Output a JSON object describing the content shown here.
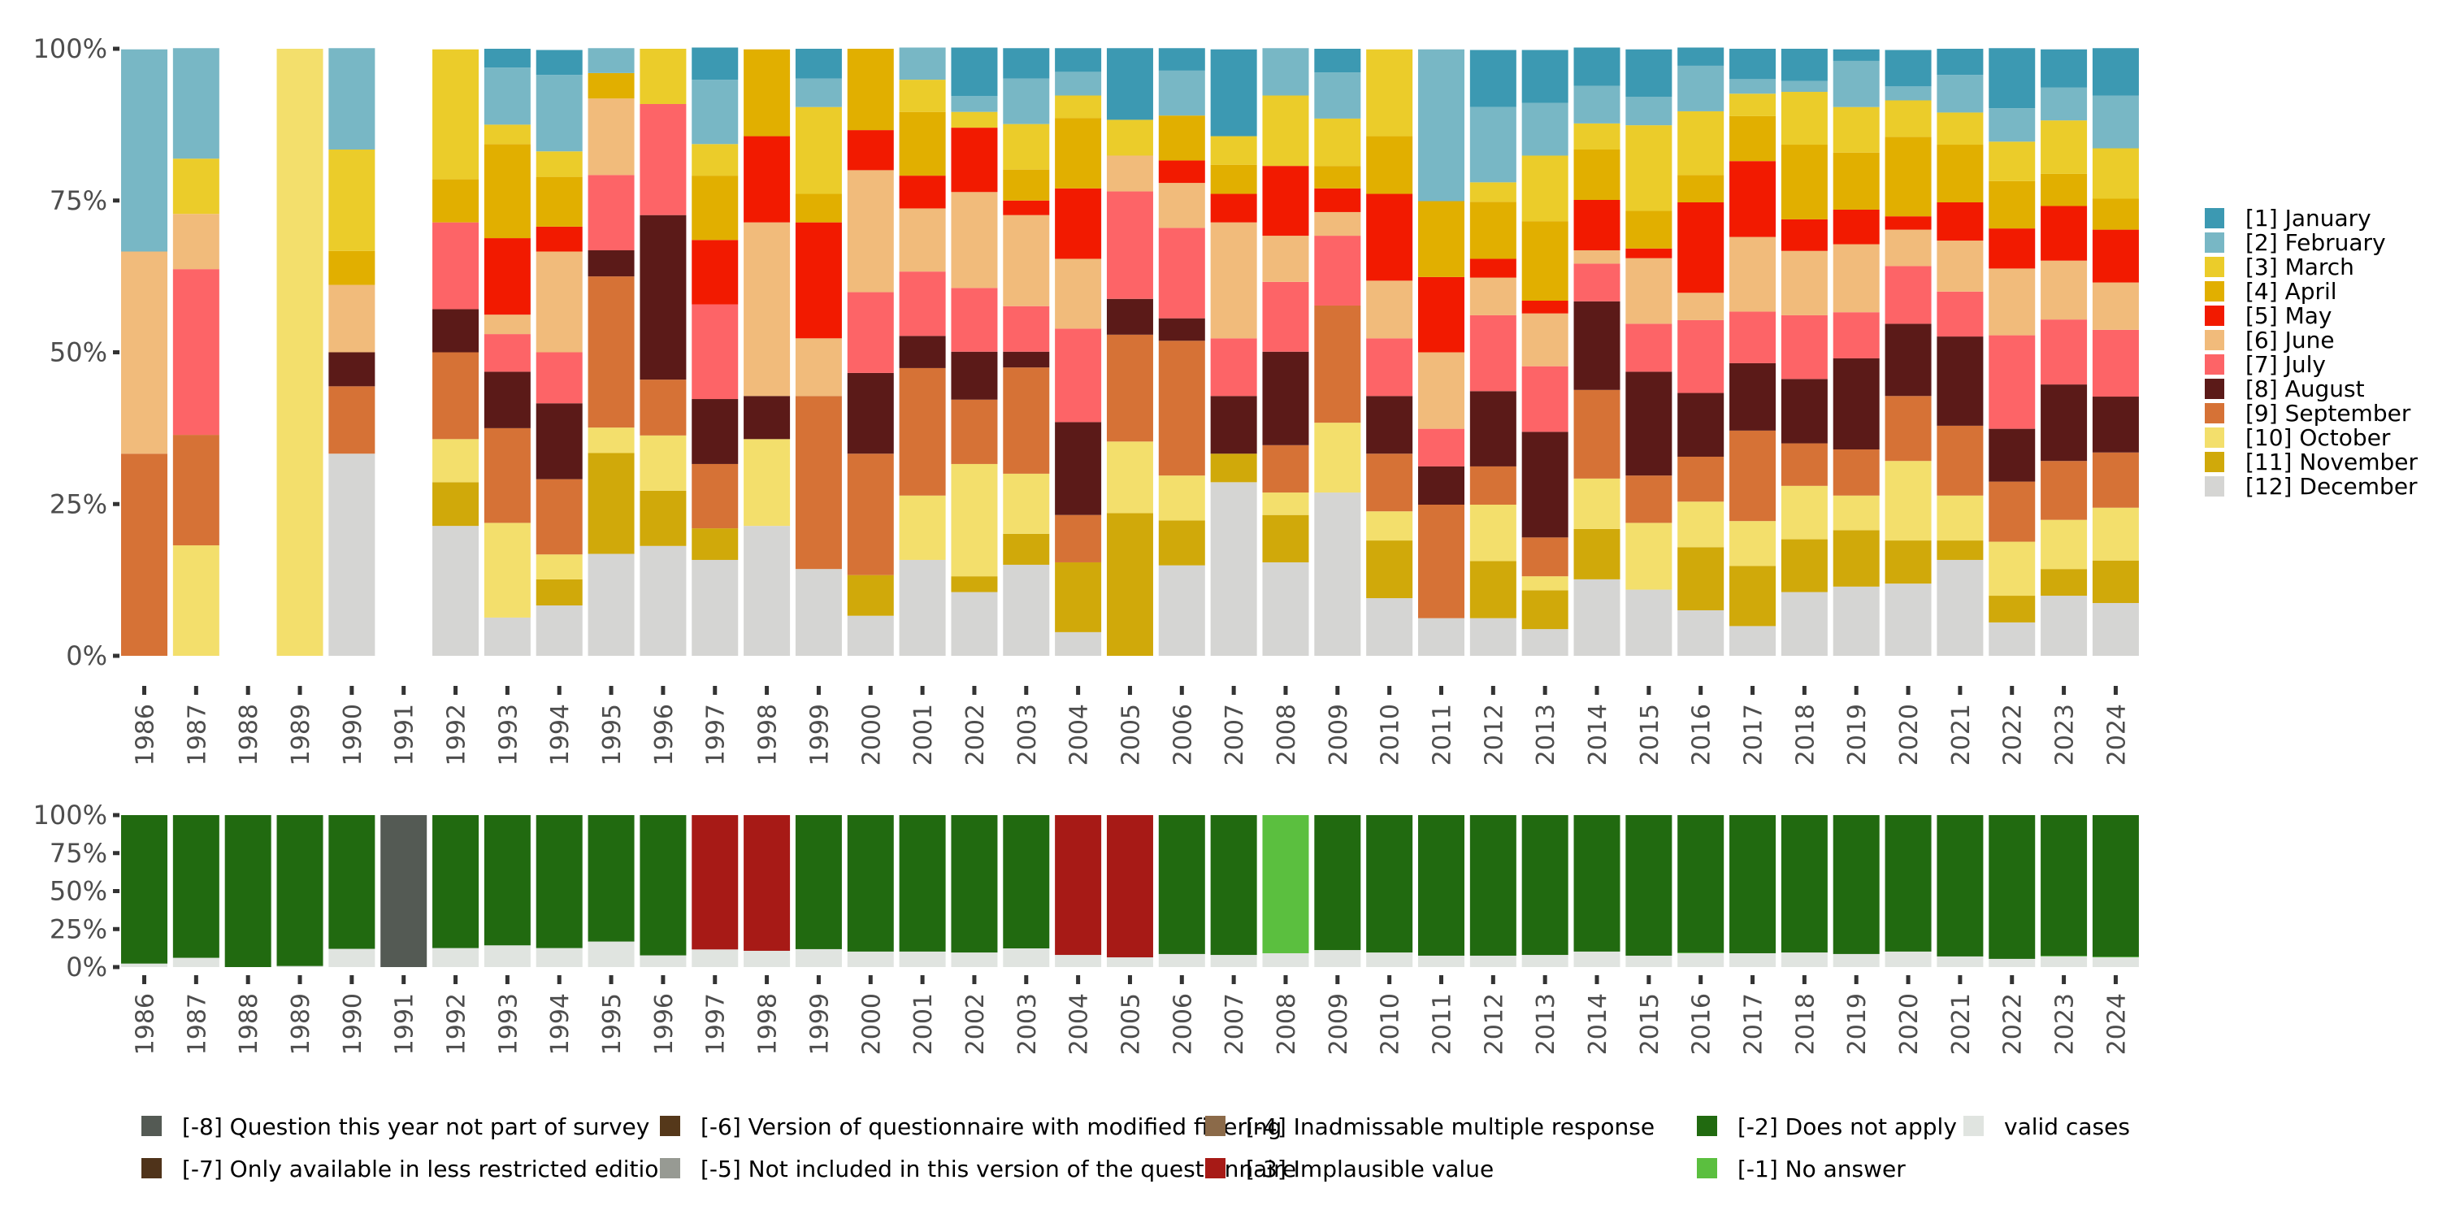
{
  "chart_data": [
    {
      "type": "bar",
      "stacked": true,
      "normalized": true,
      "title": "",
      "xlabel": "",
      "ylabel": "",
      "ylim": [
        0,
        100
      ],
      "yticks": [
        "0%",
        "25%",
        "50%",
        "75%",
        "100%"
      ],
      "grid": false,
      "legend_position": "right",
      "categories": [
        "1986",
        "1987",
        "1988",
        "1989",
        "1990",
        "1991",
        "1992",
        "1993",
        "1994",
        "1995",
        "1996",
        "1997",
        "1998",
        "1999",
        "2000",
        "2001",
        "2002",
        "2003",
        "2004",
        "2005",
        "2006",
        "2007",
        "2008",
        "2009",
        "2010",
        "2011",
        "2012",
        "2013",
        "2014",
        "2015",
        "2016",
        "2017",
        "2018",
        "2019",
        "2020",
        "2021",
        "2022",
        "2023",
        "2024"
      ],
      "series": [
        {
          "name": "[1] January",
          "color": "#3c99b2",
          "values": [
            0,
            0,
            0,
            0,
            0,
            0,
            0,
            3.1,
            4.1,
            0,
            0,
            5.3,
            0,
            4.9,
            0,
            0,
            8.0,
            5.0,
            3.9,
            11.8,
            3.7,
            14.3,
            0,
            3.9,
            0,
            0,
            9.4,
            8.7,
            6.3,
            7.8,
            3.0,
            5.0,
            5.3,
            1.9,
            6.0,
            4.3,
            9.9,
            6.3,
            7.8
          ]
        },
        {
          "name": "[2] February",
          "color": "#78b7c5",
          "values": [
            33.3,
            18.2,
            0,
            0,
            16.7,
            0,
            0,
            9.4,
            12.6,
            4.1,
            0,
            10.6,
            0,
            4.7,
            0,
            5.3,
            2.6,
            7.5,
            3.9,
            0,
            7.4,
            0,
            7.8,
            7.6,
            0,
            25.0,
            12.4,
            8.7,
            6.2,
            4.7,
            7.5,
            2.4,
            1.8,
            7.6,
            2.3,
            6.2,
            5.5,
            5.4,
            8.7
          ]
        },
        {
          "name": "[3] March",
          "color": "#ebcc2a",
          "values": [
            0,
            9.1,
            0,
            0,
            16.7,
            0,
            21.4,
            3.2,
            4.2,
            0,
            9.1,
            5.2,
            0,
            14.3,
            0,
            5.3,
            2.6,
            7.5,
            3.7,
            5.9,
            0,
            4.7,
            11.6,
            7.8,
            14.3,
            0,
            3.2,
            10.8,
            4.3,
            14.1,
            10.5,
            3.7,
            8.7,
            7.5,
            6.0,
            5.3,
            6.5,
            8.8,
            8.3
          ]
        },
        {
          "name": "[4] April",
          "color": "#e1af00",
          "values": [
            0,
            0,
            0,
            0,
            5.6,
            0,
            7.1,
            15.5,
            8.2,
            4.2,
            0,
            10.6,
            14.3,
            4.7,
            13.4,
            10.5,
            0,
            5.1,
            11.6,
            0,
            7.4,
            4.8,
            0,
            3.7,
            9.5,
            12.5,
            9.4,
            13.1,
            8.3,
            6.2,
            4.5,
            7.4,
            12.3,
            9.4,
            13.1,
            9.5,
            7.8,
            5.3,
            5.1
          ]
        },
        {
          "name": "[5] May",
          "color": "#f21a00",
          "values": [
            0,
            0,
            0,
            0,
            0,
            0,
            0,
            12.6,
            4.1,
            0,
            0,
            10.6,
            14.2,
            19.1,
            6.6,
            5.4,
            10.6,
            2.4,
            11.6,
            0,
            3.7,
            4.7,
            11.5,
            3.9,
            14.3,
            12.4,
            3.1,
            2.1,
            8.3,
            1.6,
            14.9,
            12.5,
            5.2,
            5.7,
            2.2,
            6.3,
            6.6,
            9.0,
            8.7
          ]
        },
        {
          "name": "[6] June",
          "color": "#f1bb7b",
          "values": [
            33.3,
            9.1,
            0,
            0,
            11.1,
            0,
            0,
            3.2,
            16.6,
            12.6,
            0,
            0,
            28.6,
            9.5,
            20.1,
            10.4,
            15.8,
            15.0,
            11.5,
            5.9,
            7.4,
            19.1,
            7.6,
            3.9,
            9.5,
            12.6,
            6.2,
            8.7,
            2.2,
            10.8,
            4.5,
            12.3,
            10.6,
            11.2,
            6.0,
            8.4,
            11.0,
            9.7,
            7.8
          ]
        },
        {
          "name": "[7] July",
          "color": "#fd6467",
          "values": [
            0,
            27.3,
            0,
            0,
            0,
            0,
            14.3,
            6.2,
            8.4,
            12.4,
            18.3,
            15.6,
            0,
            0,
            13.3,
            10.6,
            10.5,
            7.5,
            15.4,
            17.7,
            14.9,
            9.5,
            11.5,
            11.5,
            9.5,
            6.2,
            12.5,
            10.8,
            6.2,
            7.9,
            12.0,
            8.5,
            10.5,
            7.6,
            9.5,
            7.4,
            15.4,
            10.7,
            11.0
          ]
        },
        {
          "name": "[8] August",
          "color": "#5b1a18",
          "values": [
            0,
            0,
            0,
            0,
            5.6,
            0,
            7.1,
            9.3,
            12.5,
            4.3,
            27.1,
            10.7,
            7.1,
            0,
            13.3,
            5.3,
            7.9,
            2.6,
            15.3,
            5.9,
            3.7,
            9.5,
            15.4,
            0,
            9.5,
            6.3,
            12.4,
            17.4,
            14.6,
            17.1,
            10.5,
            11.1,
            10.6,
            15.0,
            11.9,
            14.7,
            8.7,
            12.6,
            9.2
          ]
        },
        {
          "name": "[9] September",
          "color": "#d67236",
          "values": [
            33.3,
            18.2,
            0,
            0,
            11.1,
            0,
            14.3,
            15.6,
            12.4,
            24.9,
            9.2,
            10.6,
            0,
            28.5,
            20.0,
            21.0,
            10.6,
            17.5,
            7.8,
            17.6,
            22.2,
            0,
            7.8,
            19.3,
            9.5,
            18.7,
            6.3,
            6.4,
            14.6,
            7.8,
            7.4,
            14.9,
            7.0,
            7.6,
            10.7,
            11.5,
            9.9,
            9.7,
            9.1
          ]
        },
        {
          "name": "[10] October",
          "color": "#f3df6c",
          "values": [
            0,
            18.2,
            0,
            100,
            0,
            0,
            7.1,
            15.6,
            4.1,
            4.2,
            9.1,
            0,
            14.3,
            0,
            0,
            10.6,
            18.5,
            9.9,
            0,
            11.8,
            7.4,
            0,
            3.7,
            11.5,
            4.8,
            0,
            9.3,
            2.3,
            8.3,
            11.0,
            7.5,
            7.4,
            8.8,
            5.7,
            13.1,
            7.4,
            8.9,
            8.1,
            8.7
          ]
        },
        {
          "name": "[11] November",
          "color": "#d0a90a",
          "values": [
            0,
            0,
            0,
            0,
            0,
            0,
            7.2,
            0,
            4.3,
            16.6,
            9.1,
            5.2,
            0,
            0,
            6.7,
            0,
            2.6,
            5.1,
            11.5,
            23.5,
            7.4,
            4.7,
            7.8,
            0,
            9.5,
            0,
            9.4,
            6.4,
            8.3,
            0,
            10.4,
            9.9,
            8.7,
            9.3,
            7.1,
            3.2,
            4.4,
            4.4,
            7.0
          ]
        },
        {
          "name": "[12] December",
          "color": "#d5d5d3",
          "values": [
            0,
            0,
            0,
            0,
            33.3,
            0,
            21.4,
            6.3,
            8.3,
            16.8,
            18.1,
            15.8,
            21.4,
            14.3,
            6.6,
            15.8,
            10.5,
            15.0,
            3.9,
            0,
            14.9,
            28.6,
            15.4,
            26.9,
            9.5,
            6.2,
            6.2,
            4.4,
            12.6,
            10.9,
            7.5,
            4.9,
            10.5,
            11.4,
            11.9,
            15.8,
            5.5,
            9.9,
            8.7
          ]
        }
      ]
    },
    {
      "type": "bar",
      "stacked": true,
      "normalized": true,
      "title": "",
      "xlabel": "",
      "ylabel": "",
      "ylim": [
        0,
        100
      ],
      "yticks": [
        "0%",
        "25%",
        "50%",
        "75%",
        "100%"
      ],
      "grid": false,
      "legend_position": "bottom",
      "categories": [
        "1986",
        "1987",
        "1988",
        "1989",
        "1990",
        "1991",
        "1992",
        "1993",
        "1994",
        "1995",
        "1996",
        "1997",
        "1998",
        "1999",
        "2000",
        "2001",
        "2002",
        "2003",
        "2004",
        "2005",
        "2006",
        "2007",
        "2008",
        "2009",
        "2010",
        "2011",
        "2012",
        "2013",
        "2014",
        "2015",
        "2016",
        "2017",
        "2018",
        "2019",
        "2020",
        "2021",
        "2022",
        "2023",
        "2024"
      ],
      "series": [
        {
          "name": "valid cases",
          "color": "#e0e4e0",
          "values": [
            2.3,
            6.1,
            0,
            0.7,
            12.0,
            0,
            12.5,
            14.3,
            12.5,
            16.8,
            7.7,
            11.6,
            10.7,
            11.8,
            10.2,
            10.2,
            9.6,
            12.3,
            8.0,
            6.4,
            8.6,
            8.0,
            9.1,
            11.2,
            9.6,
            7.5,
            7.5,
            8.0,
            10.2,
            7.5,
            9.1,
            9.1,
            9.6,
            8.6,
            10.2,
            7.0,
            5.4,
            7.0,
            6.4
          ]
        },
        {
          "name": "[-1] No answer",
          "color": "#5bbf3f",
          "values": [
            0,
            0,
            0,
            0,
            0,
            0,
            0,
            0,
            0,
            0,
            0,
            0,
            0,
            0,
            0,
            0,
            0,
            0,
            0,
            0,
            0,
            0,
            90.9,
            0,
            0,
            0,
            0,
            0,
            0,
            0,
            0.4,
            0,
            0,
            0,
            0,
            0,
            0,
            0.4,
            0.4
          ]
        },
        {
          "name": "[-2] Does not apply",
          "color": "#216a10",
          "values": [
            97.7,
            93.9,
            100,
            99.3,
            88.0,
            0,
            87.5,
            85.7,
            87.5,
            83.2,
            92.3,
            0,
            0,
            88.2,
            89.8,
            89.8,
            90.4,
            87.7,
            0,
            0,
            91.4,
            92.0,
            0,
            88.8,
            90.4,
            92.5,
            92.5,
            92.0,
            89.8,
            92.5,
            90.5,
            90.9,
            90.4,
            91.4,
            89.8,
            93.0,
            94.6,
            92.6,
            93.2
          ]
        },
        {
          "name": "[-3] Implausible value",
          "color": "#a71a16",
          "values": [
            0,
            0,
            0,
            0,
            0,
            0,
            0,
            0,
            0,
            0,
            0,
            88.4,
            89.3,
            0,
            0,
            0,
            0,
            0,
            92.0,
            93.6,
            0,
            0,
            0,
            0,
            0,
            0,
            0,
            0,
            0,
            0,
            0,
            0,
            0,
            0,
            0,
            0,
            0,
            0,
            0
          ]
        },
        {
          "name": "[-4] Inadmissable multiple response",
          "color": "#8b6a49",
          "values": [
            0,
            0,
            0,
            0,
            0,
            0,
            0,
            0,
            0,
            0,
            0,
            0,
            0,
            0,
            0,
            0,
            0,
            0,
            0,
            0,
            0,
            0,
            0,
            0,
            0,
            0,
            0,
            0,
            0,
            0,
            0,
            0,
            0,
            0,
            0,
            0,
            0,
            0,
            0
          ]
        },
        {
          "name": "[-5] Not included in this version of the questionnaire",
          "color": "#979a93",
          "values": [
            0,
            0,
            0,
            0,
            0,
            0,
            0,
            0,
            0,
            0,
            0,
            0,
            0,
            0,
            0,
            0,
            0,
            0,
            0,
            0,
            0,
            0,
            0,
            0,
            0,
            0,
            0,
            0,
            0,
            0,
            0,
            0,
            0,
            0,
            0,
            0,
            0,
            0,
            0
          ]
        },
        {
          "name": "[-6] Version of questionnaire with modified filtering",
          "color": "#55381a",
          "values": [
            0,
            0,
            0,
            0,
            0,
            0,
            0,
            0,
            0,
            0,
            0,
            0,
            0,
            0,
            0,
            0,
            0,
            0,
            0,
            0,
            0,
            0,
            0,
            0,
            0,
            0,
            0,
            0,
            0,
            0,
            0,
            0,
            0,
            0,
            0,
            0,
            0,
            0,
            0
          ]
        },
        {
          "name": "[-7] Only available in less restricted edition",
          "color": "#4f331a",
          "values": [
            0,
            0,
            0,
            0,
            0,
            0,
            0,
            0,
            0,
            0,
            0,
            0,
            0,
            0,
            0,
            0,
            0,
            0,
            0,
            0,
            0,
            0,
            0,
            0,
            0,
            0,
            0,
            0,
            0,
            0,
            0,
            0,
            0,
            0,
            0,
            0,
            0,
            0,
            0
          ]
        },
        {
          "name": "[-8] Question this year not part of survey",
          "color": "#545a54",
          "values": [
            0,
            0,
            0,
            0,
            0,
            100,
            0,
            0,
            0,
            0,
            0,
            0,
            0,
            0,
            0,
            0,
            0,
            0,
            0,
            0,
            0,
            0,
            0,
            0,
            0,
            0,
            0,
            0,
            0,
            0,
            0,
            0,
            0,
            0,
            0,
            0,
            0,
            0,
            0
          ]
        }
      ]
    }
  ],
  "legend_top": [
    "[1] January",
    "[2] February",
    "[3] March",
    "[4] April",
    "[5] May",
    "[6] June",
    "[7] July",
    "[8] August",
    "[9] September",
    "[10] October",
    "[11] November",
    "[12] December"
  ],
  "legend_bottom": {
    "row1": [
      {
        "label": "[-8] Question this year not part of survey",
        "color": "#545a54"
      },
      {
        "label": "[-6] Version of questionnaire with modified filtering",
        "color": "#55381a"
      },
      {
        "label": "[-4] Inadmissable multiple response",
        "color": "#8b6a49"
      },
      {
        "label": "[-2] Does not apply",
        "color": "#216a10"
      },
      {
        "label": "valid cases",
        "color": "#e0e4e0"
      }
    ],
    "row2": [
      {
        "label": "[-7] Only available in less restricted edition",
        "color": "#4f331a"
      },
      {
        "label": "[-5] Not included in this version of the questionnaire",
        "color": "#979a93"
      },
      {
        "label": "[-3] Implausible value",
        "color": "#a71a16"
      },
      {
        "label": "[-1] No answer",
        "color": "#5bbf3f"
      }
    ]
  }
}
